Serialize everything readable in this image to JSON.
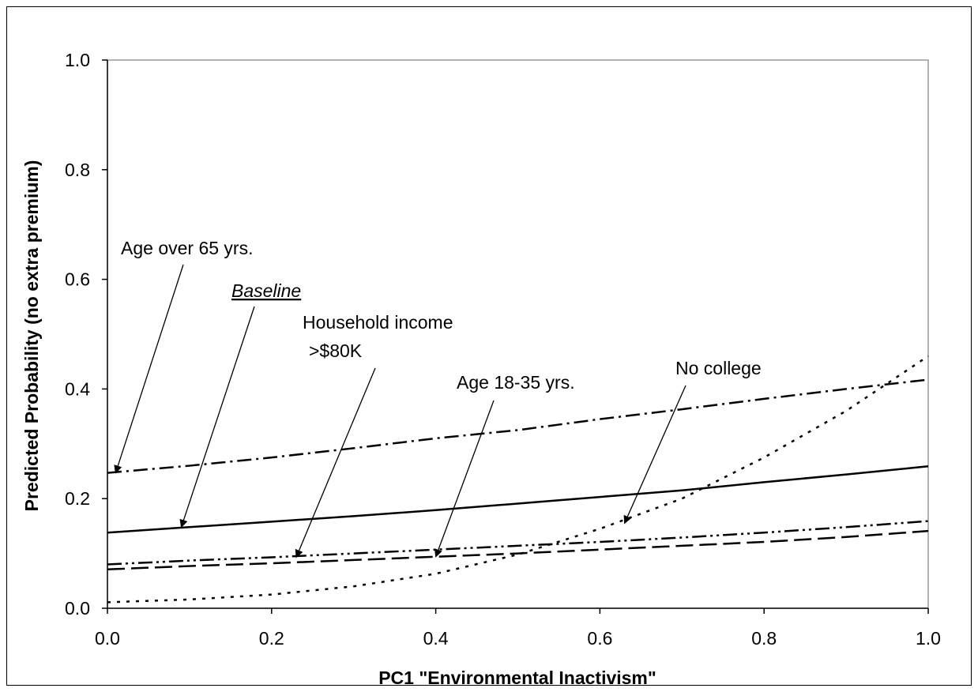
{
  "chart_data": {
    "type": "line",
    "title": "",
    "xlabel": "PC1 \"Environmental Inactivism\"",
    "ylabel": "Predicted Probability (no extra premium)",
    "xlim": [
      0,
      1
    ],
    "ylim": [
      0,
      1
    ],
    "x_ticks": [
      "0.0",
      "0.2",
      "0.4",
      "0.6",
      "0.8",
      "1.0"
    ],
    "y_ticks": [
      "0.0",
      "0.2",
      "0.4",
      "0.6",
      "0.8",
      "1.0"
    ],
    "grid": false,
    "legend": "none",
    "x": [
      0,
      0.1,
      0.2,
      0.3,
      0.4,
      0.5,
      0.6,
      0.7,
      0.8,
      0.9,
      1.0
    ],
    "series": [
      {
        "name": "Age over 65 yrs.",
        "style": "dash-dot",
        "values": [
          0.247,
          0.26,
          0.275,
          0.292,
          0.31,
          0.325,
          0.345,
          0.363,
          0.382,
          0.4,
          0.417
        ]
      },
      {
        "name": "Baseline",
        "style": "solid",
        "values": [
          0.138,
          0.148,
          0.158,
          0.168,
          0.179,
          0.191,
          0.203,
          0.215,
          0.23,
          0.244,
          0.259
        ]
      },
      {
        "name": "Household income >$80K",
        "style": "dash-dot-dot",
        "values": [
          0.08,
          0.087,
          0.093,
          0.1,
          0.107,
          0.114,
          0.121,
          0.129,
          0.138,
          0.148,
          0.159
        ]
      },
      {
        "name": "Age 18-35 yrs.",
        "style": "long-dash",
        "values": [
          0.071,
          0.077,
          0.082,
          0.088,
          0.094,
          0.1,
          0.107,
          0.114,
          0.121,
          0.13,
          0.141
        ]
      },
      {
        "name": "No college",
        "style": "dotted",
        "values": [
          0.011,
          0.016,
          0.025,
          0.04,
          0.063,
          0.098,
          0.145,
          0.2,
          0.275,
          0.36,
          0.46
        ]
      }
    ],
    "annotations": [
      {
        "id": "age65",
        "text": "Age over 65 yrs.",
        "underline": false,
        "italic": false,
        "point_to": [
          0.01,
          0.247
        ]
      },
      {
        "id": "baseline",
        "text": "Baseline",
        "underline": true,
        "italic": true,
        "point_to": [
          0.09,
          0.148
        ]
      },
      {
        "id": "income1",
        "text": "Household income",
        "underline": false,
        "italic": false
      },
      {
        "id": "income2",
        "text": ">$80K",
        "underline": false,
        "italic": false,
        "point_to": [
          0.23,
          0.093
        ]
      },
      {
        "id": "age1835",
        "text": "Age 18-35 yrs.",
        "underline": false,
        "italic": false,
        "point_to": [
          0.4,
          0.094
        ]
      },
      {
        "id": "nocollege",
        "text": "No college",
        "underline": false,
        "italic": false,
        "point_to": [
          0.63,
          0.155
        ]
      }
    ]
  }
}
